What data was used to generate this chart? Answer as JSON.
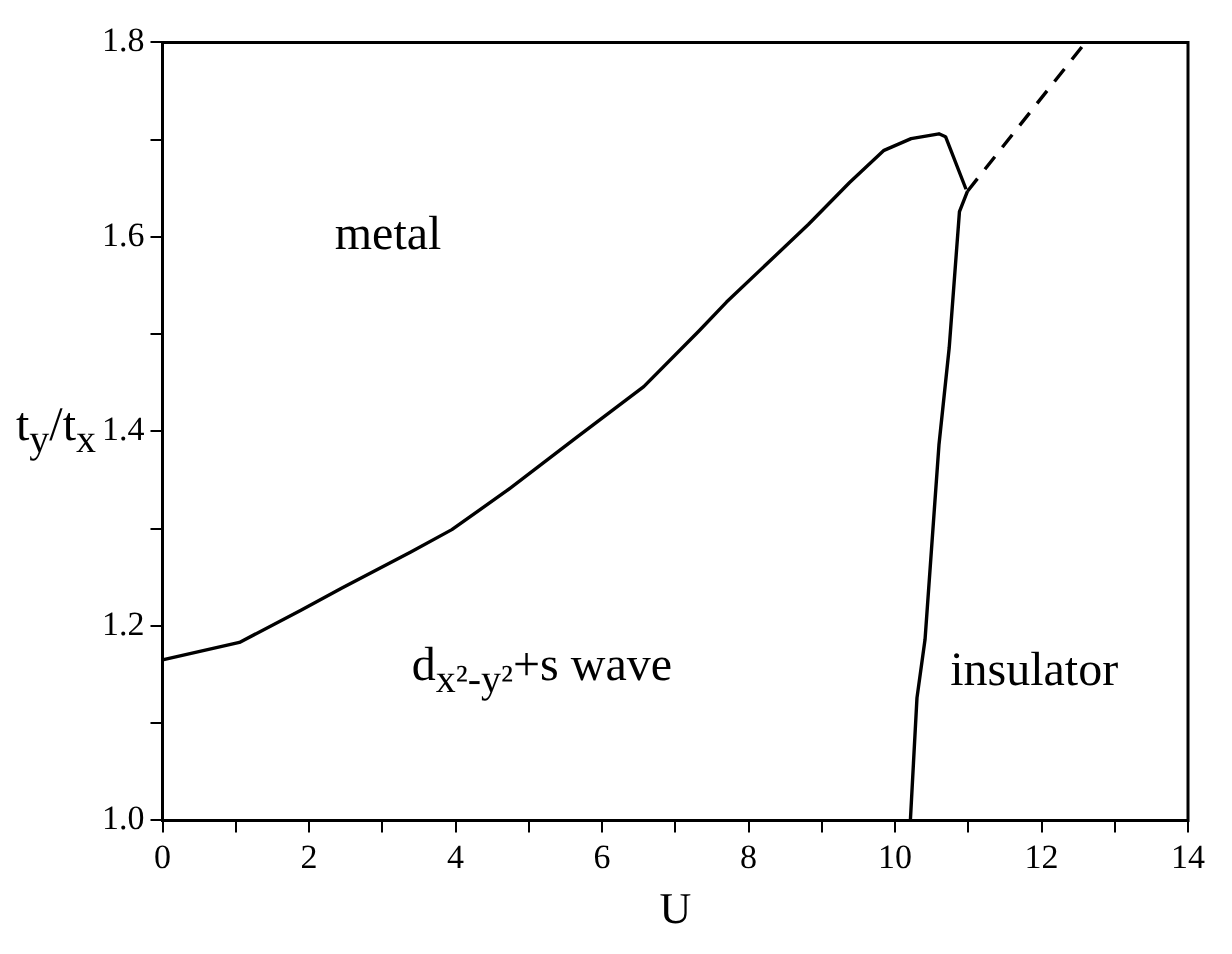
{
  "chart_data": {
    "type": "line",
    "xlabel": "U",
    "ylabel": "t$_{y}$/t$_{x}$",
    "xlim": [
      0,
      14
    ],
    "ylim": [
      1.0,
      1.8
    ],
    "xticks": [
      0,
      {
        "value": 1,
        "label": null
      },
      2,
      {
        "value": 3,
        "label": null
      },
      4,
      {
        "value": 5,
        "label": null
      },
      6,
      {
        "value": 7,
        "label": null
      },
      8,
      {
        "value": 9,
        "label": null
      },
      10,
      {
        "value": 11,
        "label": null
      },
      12,
      {
        "value": 13,
        "label": null
      },
      14
    ],
    "yticks": [
      {
        "value": 1.0,
        "label": "1.0"
      },
      {
        "value": 1.1,
        "label": null
      },
      1.2,
      {
        "value": 1.3,
        "label": null
      },
      1.4,
      {
        "value": 1.5,
        "label": null
      },
      1.6,
      {
        "value": 1.7,
        "label": null
      },
      {
        "value": 1.8,
        "label": "1.8"
      }
    ],
    "grid": false,
    "legend": false,
    "marker": "none",
    "series": [
      {
        "color": "#000000",
        "line_style": "solid",
        "x": [
          0,
          1.05,
          1.89,
          2.45,
          3.39,
          3.95,
          4.7,
          5.64,
          6.57,
          7.32,
          7.7,
          8.82,
          9.38,
          9.85,
          10.22,
          10.6,
          10.69,
          10.97
        ],
        "values": [
          1.165,
          1.183,
          1.216,
          1.239,
          1.276,
          1.299,
          1.339,
          1.393,
          1.446,
          1.503,
          1.533,
          1.613,
          1.656,
          1.689,
          1.701,
          1.706,
          1.703,
          1.649
        ]
      },
      {
        "color": "#000000",
        "line_style": "solid",
        "x": [
          10.21,
          10.3,
          10.41,
          10.6,
          10.74,
          10.88,
          10.99
        ],
        "values": [
          1.0,
          1.126,
          1.186,
          1.386,
          1.486,
          1.626,
          1.647
        ]
      },
      {
        "color": "#000000",
        "line_style": "dashed",
        "x": [
          10.99,
          12.6
        ],
        "values": [
          1.647,
          1.8
        ]
      }
    ],
    "annotations": [
      "metal",
      "d$_{x²-y²}$+s wave",
      "insulator"
    ]
  }
}
